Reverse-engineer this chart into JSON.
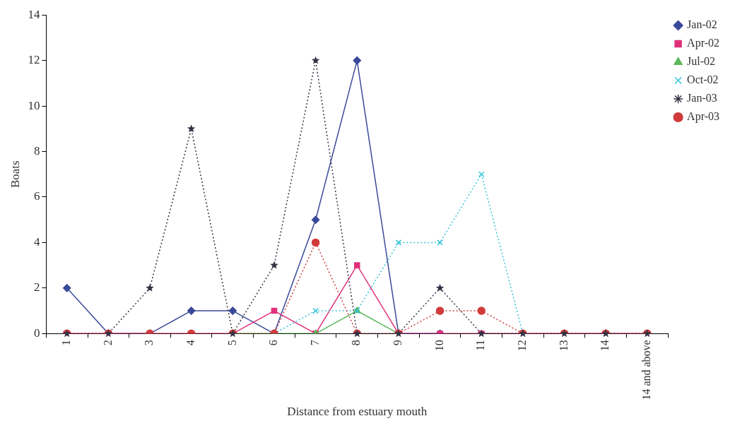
{
  "chart_data": {
    "type": "line",
    "xlabel": "Distance from estuary mouth",
    "ylabel": "Boats",
    "categories": [
      "1",
      "2",
      "3",
      "4",
      "5",
      "6",
      "7",
      "8",
      "9",
      "10",
      "11",
      "12",
      "13",
      "14",
      "14 and above"
    ],
    "ylim": [
      0,
      14
    ],
    "yticks": [
      0,
      2,
      4,
      6,
      8,
      10,
      12,
      14
    ],
    "grid": false,
    "legend": "top right",
    "series": [
      {
        "name": "Jan-02",
        "color": "#3a4a9a",
        "marker": "diamond",
        "line_style": "solid",
        "values": [
          2,
          0,
          0,
          1,
          1,
          0,
          5,
          12,
          0,
          0,
          null,
          null,
          null,
          null,
          null
        ]
      },
      {
        "name": "Apr-02",
        "color": "#e0307a",
        "marker": "square",
        "line_style": "solid",
        "values": [
          0,
          0,
          0,
          0,
          0,
          1,
          0,
          3,
          0,
          0,
          0,
          0,
          0,
          0,
          0
        ]
      },
      {
        "name": "Jul-02",
        "color": "#5cb85c",
        "marker": "triangle",
        "line_style": "solid",
        "values": [
          null,
          null,
          null,
          null,
          0,
          0,
          0,
          1,
          0,
          null,
          null,
          null,
          null,
          null,
          null
        ]
      },
      {
        "name": "Oct-02",
        "color": "#33c4d8",
        "marker": "cross",
        "line_style": "dotted",
        "values": [
          null,
          null,
          null,
          null,
          null,
          0,
          1,
          1,
          4,
          4,
          7,
          0,
          null,
          null,
          null
        ]
      },
      {
        "name": "Jan-03",
        "color": "#333344",
        "marker": "star",
        "line_style": "dotted",
        "values": [
          0,
          0,
          2,
          9,
          0,
          3,
          12,
          0,
          0,
          2,
          0,
          0,
          0,
          0,
          0
        ]
      },
      {
        "name": "Apr-03",
        "color": "#d03a3a",
        "marker": "circle",
        "line_style": "dotted",
        "values": [
          0,
          0,
          0,
          0,
          0,
          0,
          4,
          0,
          0,
          1,
          1,
          0,
          0,
          0,
          0
        ]
      }
    ]
  }
}
